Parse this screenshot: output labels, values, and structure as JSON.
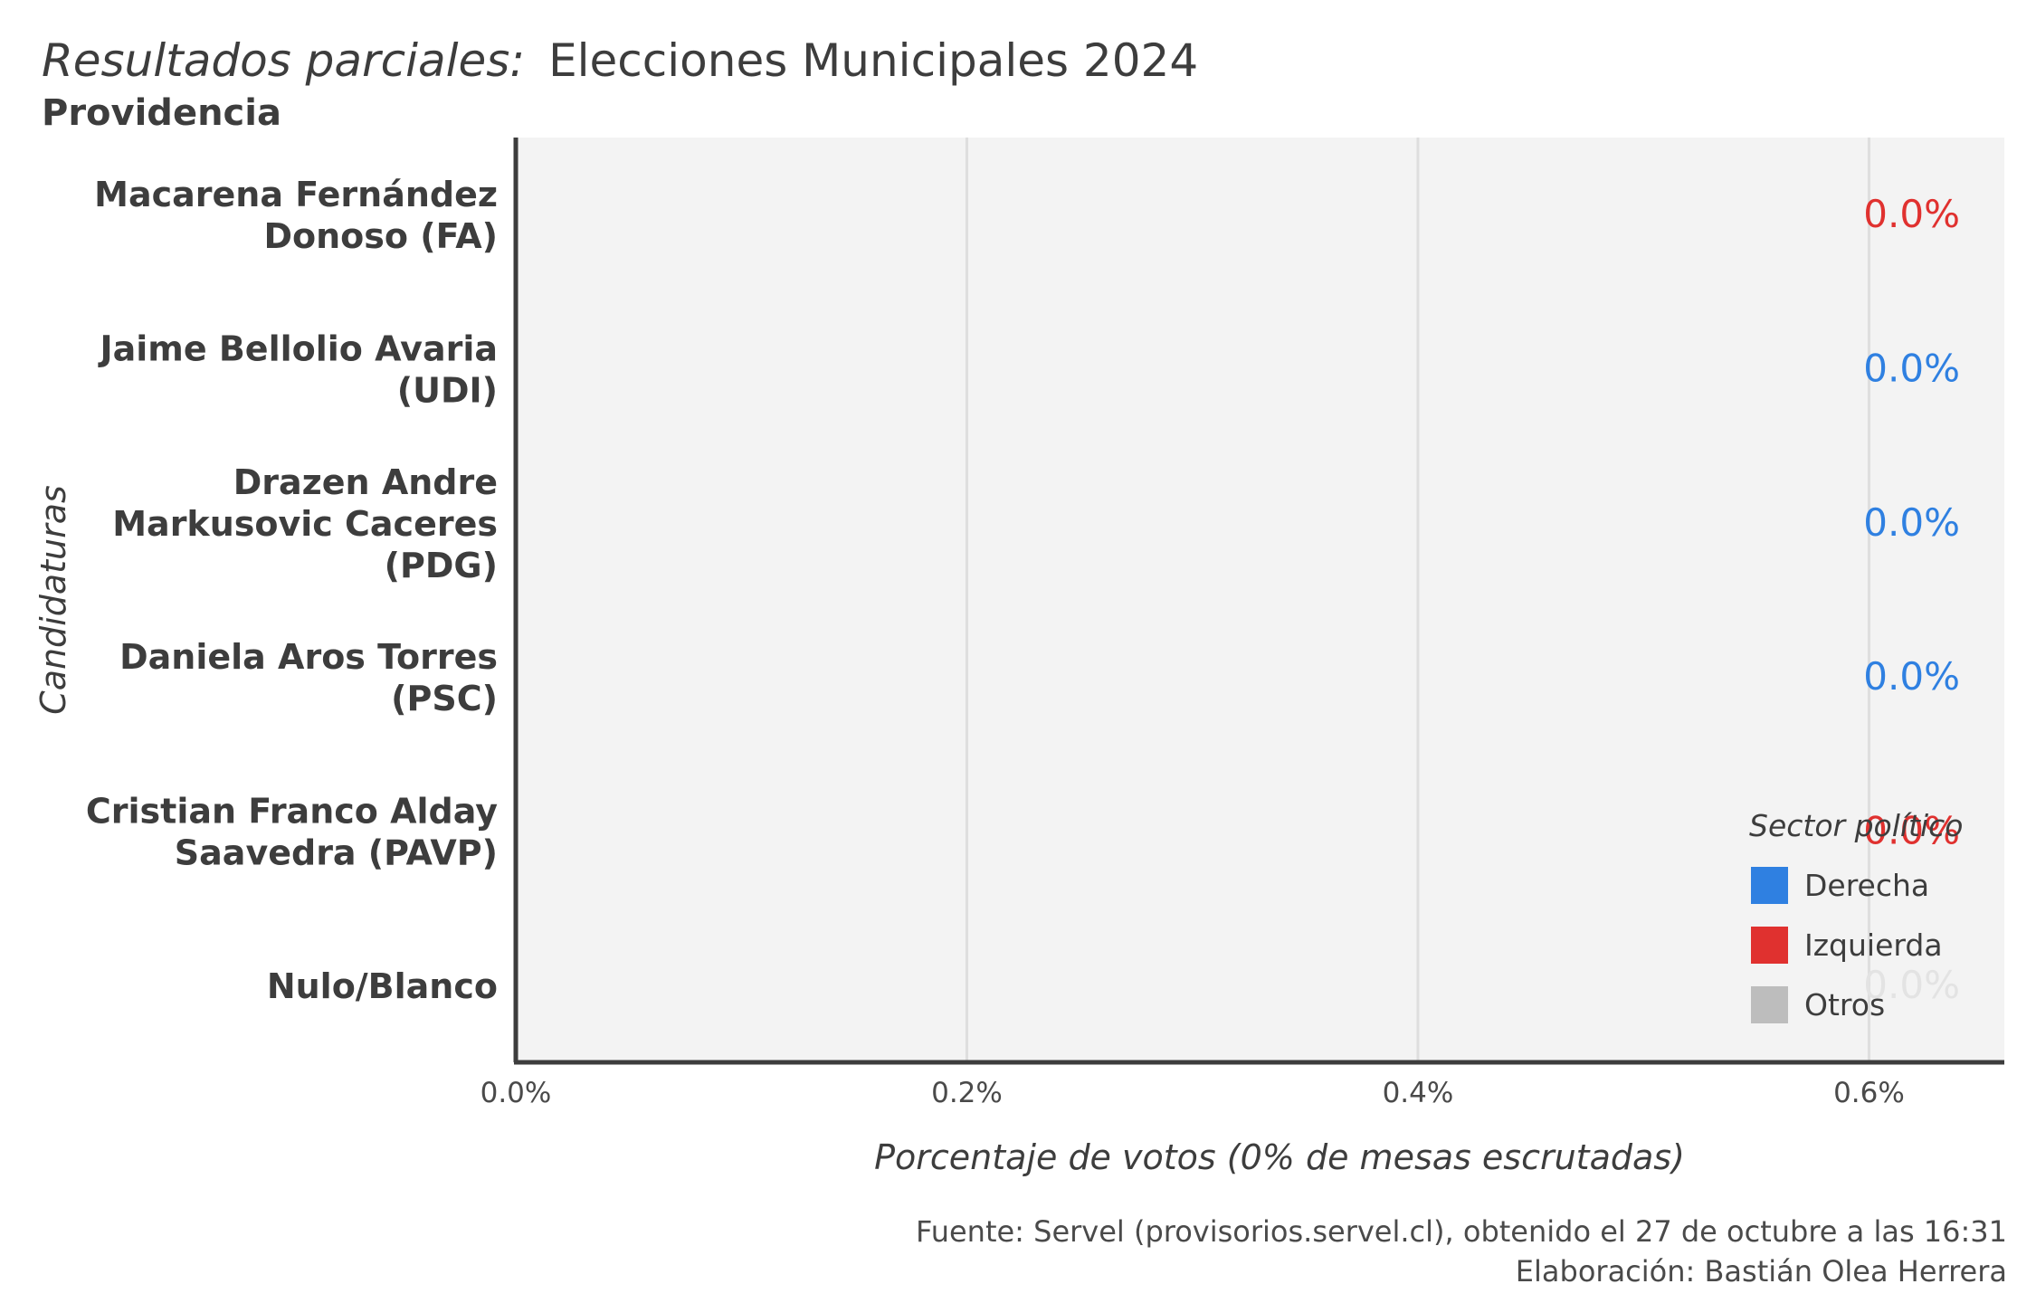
{
  "chart_data": {
    "type": "bar",
    "orientation": "horizontal",
    "title_prefix": "Resultados parciales:",
    "title": "Elecciones Municipales 2024",
    "subtitle": "Providencia",
    "xlabel": "Porcentaje de votos (0% de mesas escrutadas)",
    "ylabel": "Candidaturas",
    "xlim": [
      0,
      0.0066
    ],
    "x_ticks": [
      0,
      0.002,
      0.004,
      0.006
    ],
    "x_tick_labels": [
      "0.0%",
      "0.2%",
      "0.4%",
      "0.6%"
    ],
    "grid": true,
    "categories": [
      [
        "Macarena Fernández",
        "Donoso (FA)"
      ],
      [
        "Jaime Bellolio Avaria",
        "(UDI)"
      ],
      [
        "Drazen Andre",
        "Markusovic Caceres",
        "(PDG)"
      ],
      [
        "Daniela Aros Torres",
        "(PSC)"
      ],
      [
        "Cristian Franco Alday",
        "Saavedra (PAVP)"
      ],
      [
        "Nulo/Blanco"
      ]
    ],
    "values": [
      0,
      0,
      0,
      0,
      0,
      0
    ],
    "value_labels": [
      "0.0%",
      "0.0%",
      "0.0%",
      "0.0%",
      "0.0%",
      "0.0%"
    ],
    "sectors": [
      "Izquierda",
      "Derecha",
      "Derecha",
      "Derecha",
      "Izquierda",
      "Otros"
    ],
    "legend": {
      "title": "Sector político",
      "position": "bottom-right",
      "items": [
        {
          "name": "Derecha",
          "color": "#2f80e1"
        },
        {
          "name": "Izquierda",
          "color": "#e0312f"
        },
        {
          "name": "Otros",
          "color": "#bdbdbd"
        }
      ]
    },
    "label_colors": {
      "Derecha": "#2f80e1",
      "Izquierda": "#e0312f",
      "Otros": "#e3e3e3"
    }
  },
  "caption_lines": [
    "Fuente: Servel (provisorios.servel.cl), obtenido el 27 de octubre a las 16:31",
    "Elaboración: Bastián Olea Herrera"
  ]
}
